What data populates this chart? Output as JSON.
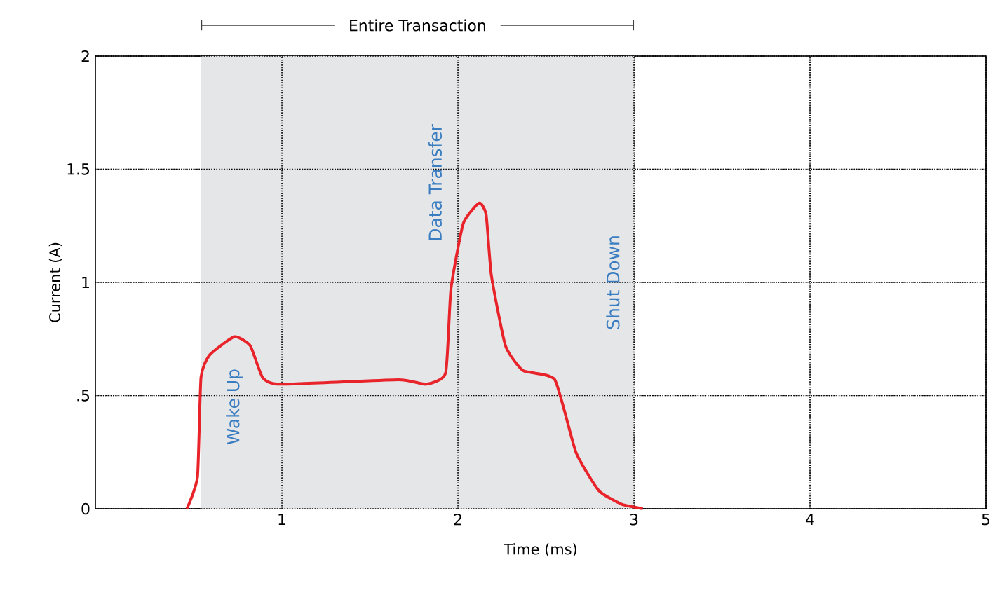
{
  "chart_data": {
    "type": "line",
    "xlabel": "Time (ms)",
    "ylabel": "Current (A)",
    "xlim": [
      -0.06,
      5
    ],
    "ylim": [
      0,
      2
    ],
    "xticks": [
      1,
      2,
      3,
      4,
      5
    ],
    "yticks": [
      0,
      {
        "value": 0.5,
        "label": ".5"
      },
      1,
      1.5,
      2
    ],
    "grid": true,
    "line_style": "solid",
    "marker": "none",
    "series": [
      {
        "color": "#e8232a",
        "x": [
          0.46,
          0.52,
          0.54,
          0.59,
          0.73,
          0.82,
          0.89,
          0.99,
          1.66,
          1.82,
          1.93,
          1.96,
          2.03,
          2.12,
          2.16,
          2.19,
          2.27,
          2.37,
          2.55,
          2.67,
          2.8,
          2.93,
          3.05
        ],
        "values": [
          0,
          0.14,
          0.58,
          0.68,
          0.76,
          0.72,
          0.58,
          0.55,
          0.57,
          0.55,
          0.6,
          0.97,
          1.26,
          1.35,
          1.3,
          1.03,
          0.72,
          0.61,
          0.57,
          0.25,
          0.08,
          0.02,
          0
        ]
      }
    ],
    "bands": [
      {
        "axis": "x",
        "from": 0.54,
        "to": 3,
        "label": "Entire Transaction",
        "color": "#e5e6e8"
      }
    ],
    "annotations": [
      "Wake Up",
      "Data Transfer",
      "Shut Down"
    ]
  }
}
